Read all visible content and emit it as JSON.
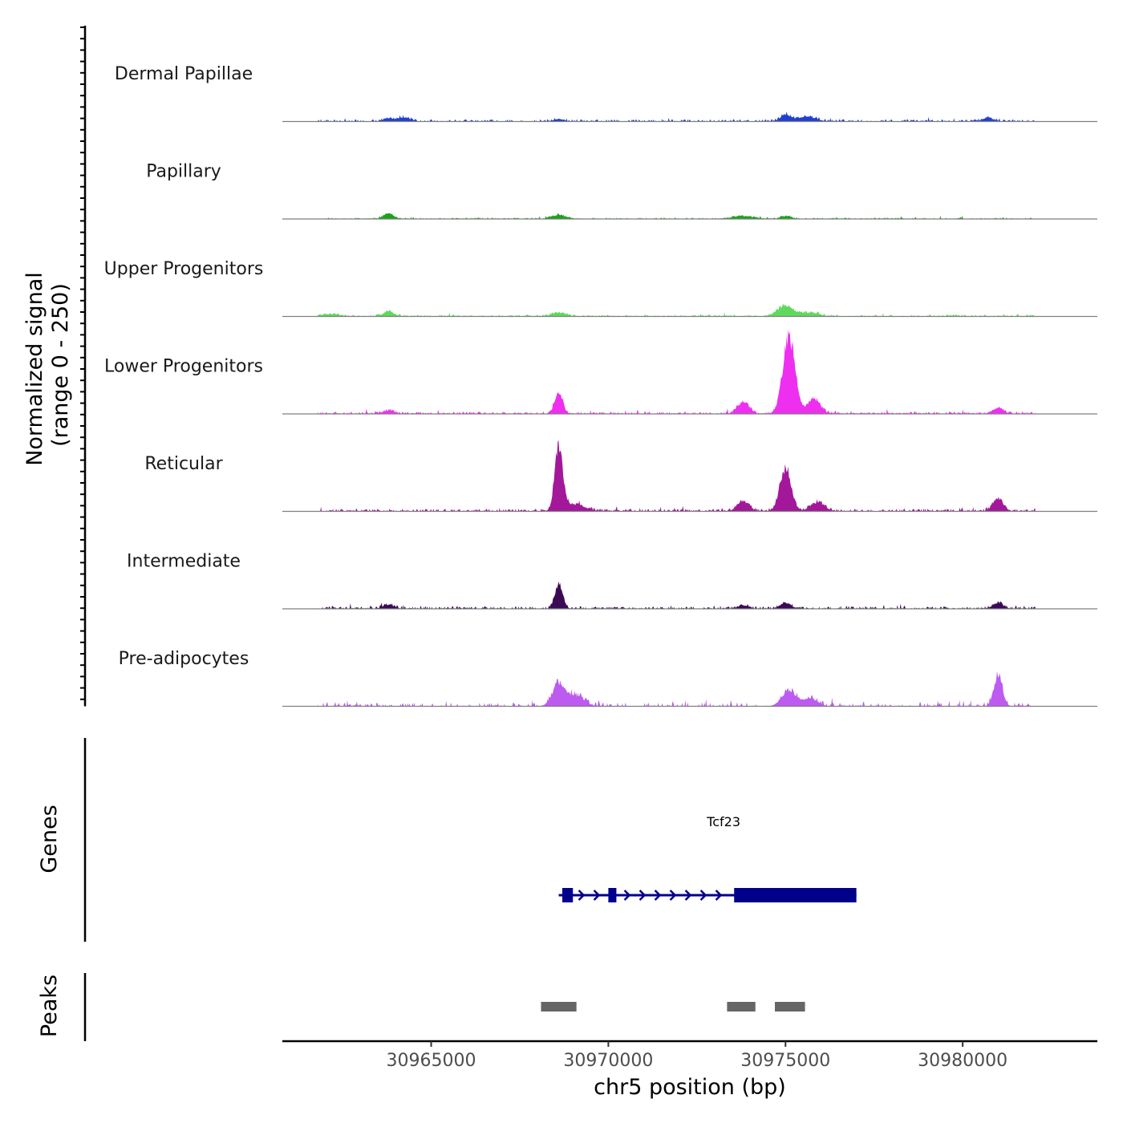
{
  "chart_data": {
    "type": "area",
    "title": "",
    "chromosome": "chr5",
    "xlabel": "chr5 position (bp)",
    "ylabel": "Normalized signal",
    "ylabel_range": "(range 0 - 250)",
    "xlim": [
      30960800,
      30983800
    ],
    "ylim": [
      0,
      250
    ],
    "x_ticks": [
      30965000,
      30970000,
      30975000,
      30980000
    ],
    "x_tick_labels": [
      "30965000",
      "30970000",
      "30975000",
      "30980000"
    ],
    "signal_extent": [
      30961800,
      30982050
    ],
    "tracks": [
      {
        "name": "Dermal Papillae",
        "color": "#1f3fd6",
        "noise": 5,
        "density": 0.55,
        "seed": 11,
        "peaks": [
          [
            30963800,
            8,
            150
          ],
          [
            30964250,
            10,
            150
          ],
          [
            30968600,
            6,
            150
          ],
          [
            30975000,
            16,
            150
          ],
          [
            30975600,
            12,
            250
          ],
          [
            30980700,
            8,
            150
          ]
        ]
      },
      {
        "name": "Papillary",
        "color": "#1aa31a",
        "noise": 3,
        "density": 0.6,
        "seed": 23,
        "peaks": [
          [
            30963800,
            13,
            140
          ],
          [
            30968600,
            9,
            220
          ],
          [
            30973800,
            7,
            300
          ],
          [
            30975000,
            7,
            150
          ]
        ]
      },
      {
        "name": "Upper Progenitors",
        "color": "#5ed95e",
        "noise": 4,
        "density": 0.55,
        "seed": 37,
        "peaks": [
          [
            30962200,
            6,
            200
          ],
          [
            30963800,
            12,
            150
          ],
          [
            30968600,
            9,
            200
          ],
          [
            30975000,
            26,
            220
          ],
          [
            30975700,
            9,
            250
          ]
        ]
      },
      {
        "name": "Lower Progenitors",
        "color": "#ee2ff0",
        "noise": 5,
        "density": 0.6,
        "seed": 41,
        "peaks": [
          [
            30963800,
            8,
            130
          ],
          [
            30968600,
            50,
            110
          ],
          [
            30973800,
            28,
            160
          ],
          [
            30975100,
            192,
            170
          ],
          [
            30975800,
            36,
            180
          ],
          [
            30981000,
            14,
            150
          ]
        ]
      },
      {
        "name": "Reticular",
        "color": "#a3179b",
        "noise": 6,
        "density": 0.6,
        "seed": 53,
        "peaks": [
          [
            30968600,
            155,
            110
          ],
          [
            30969000,
            18,
            300
          ],
          [
            30973800,
            26,
            160
          ],
          [
            30975000,
            100,
            160
          ],
          [
            30975900,
            22,
            200
          ],
          [
            30981000,
            30,
            150
          ]
        ]
      },
      {
        "name": "Intermediate",
        "color": "#3b0a55",
        "noise": 5,
        "density": 0.55,
        "seed": 67,
        "peaks": [
          [
            30963800,
            10,
            150
          ],
          [
            30968600,
            62,
            110
          ],
          [
            30973800,
            8,
            150
          ],
          [
            30975000,
            15,
            150
          ],
          [
            30981000,
            14,
            150
          ]
        ]
      },
      {
        "name": "Pre-adipocytes",
        "color": "#bd5af0",
        "noise": 9,
        "density": 0.3,
        "seed": 79,
        "peaks": [
          [
            30968600,
            55,
            180
          ],
          [
            30969100,
            25,
            220
          ],
          [
            30975100,
            40,
            200
          ],
          [
            30975700,
            20,
            200
          ],
          [
            30981000,
            75,
            120
          ]
        ]
      }
    ],
    "genes_track": {
      "title": "Genes",
      "color": "#00008b",
      "genes": [
        {
          "name": "Tcf23",
          "start": 30968600,
          "end": 30977000,
          "strand": "+",
          "exons": [
            [
              30968700,
              30969000
            ],
            [
              30970000,
              30970200
            ],
            [
              30973550,
              30977000
            ]
          ]
        }
      ]
    },
    "peaks_track": {
      "title": "Peaks",
      "color": "#666666",
      "regions": [
        [
          30968100,
          30969100
        ],
        [
          30973350,
          30974150
        ],
        [
          30974700,
          30975550
        ]
      ]
    }
  }
}
